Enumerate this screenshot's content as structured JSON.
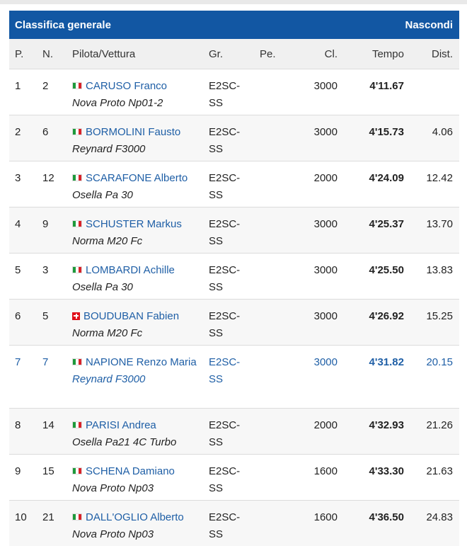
{
  "header": {
    "title": "Classifica generale",
    "hide_label": "Nascondi"
  },
  "columns": {
    "pos": "P.",
    "num": "N.",
    "pilot": "Pilota/Vettura",
    "gr": "Gr.",
    "pe": "Pe.",
    "cl": "Cl.",
    "time": "Tempo",
    "dist": "Dist."
  },
  "colors": {
    "header_bg": "#1257a3",
    "link": "#1f5fa6"
  },
  "rows": [
    {
      "pos": "1",
      "num": "2",
      "flag": "italy-flag",
      "driver": "CARUSO Franco",
      "car": "Nova Proto Np01-2",
      "gr": "E2SC-SS",
      "pe": "",
      "cl": "3000",
      "time": "4'11.67",
      "dist": ""
    },
    {
      "pos": "2",
      "num": "6",
      "flag": "italy-flag",
      "driver": "BORMOLINI Fausto",
      "car": "Reynard F3000",
      "gr": "E2SC-SS",
      "pe": "",
      "cl": "3000",
      "time": "4'15.73",
      "dist": "4.06"
    },
    {
      "pos": "3",
      "num": "12",
      "flag": "italy-flag",
      "driver": "SCARAFONE Alberto",
      "car": "Osella Pa 30",
      "gr": "E2SC-SS",
      "pe": "",
      "cl": "2000",
      "time": "4'24.09",
      "dist": "12.42"
    },
    {
      "pos": "4",
      "num": "9",
      "flag": "italy-flag",
      "driver": "SCHUSTER Markus",
      "car": "Norma M20 Fc",
      "gr": "E2SC-SS",
      "pe": "",
      "cl": "3000",
      "time": "4'25.37",
      "dist": "13.70"
    },
    {
      "pos": "5",
      "num": "3",
      "flag": "italy-flag",
      "driver": "LOMBARDI Achille",
      "car": "Osella Pa 30",
      "gr": "E2SC-SS",
      "pe": "",
      "cl": "3000",
      "time": "4'25.50",
      "dist": "13.83"
    },
    {
      "pos": "6",
      "num": "5",
      "flag": "switzerland-flag",
      "driver": "BOUDUBAN Fabien",
      "car": "Norma M20 Fc",
      "gr": "E2SC-SS",
      "pe": "",
      "cl": "3000",
      "time": "4'26.92",
      "dist": "15.25"
    },
    {
      "pos": "7",
      "num": "7",
      "flag": "italy-flag",
      "driver": "NAPIONE Renzo Maria",
      "car": "Reynard F3000",
      "gr": "E2SC-SS",
      "pe": "",
      "cl": "3000",
      "time": "4'31.82",
      "dist": "20.15",
      "highlight": true
    },
    {
      "pos": "8",
      "num": "14",
      "flag": "italy-flag",
      "driver": "PARISI Andrea",
      "car": "Osella Pa21 4C Turbo",
      "gr": "E2SC-SS",
      "pe": "",
      "cl": "2000",
      "time": "4'32.93",
      "dist": "21.26"
    },
    {
      "pos": "9",
      "num": "15",
      "flag": "italy-flag",
      "driver": "SCHENA Damiano",
      "car": "Nova Proto Np03",
      "gr": "E2SC-SS",
      "pe": "",
      "cl": "1600",
      "time": "4'33.30",
      "dist": "21.63"
    },
    {
      "pos": "10",
      "num": "21",
      "flag": "italy-flag",
      "driver": "DALL'OGLIO Alberto",
      "car": "Nova Proto Np03",
      "gr": "E2SC-SS",
      "pe": "",
      "cl": "1600",
      "time": "4'36.50",
      "dist": "24.83"
    }
  ]
}
